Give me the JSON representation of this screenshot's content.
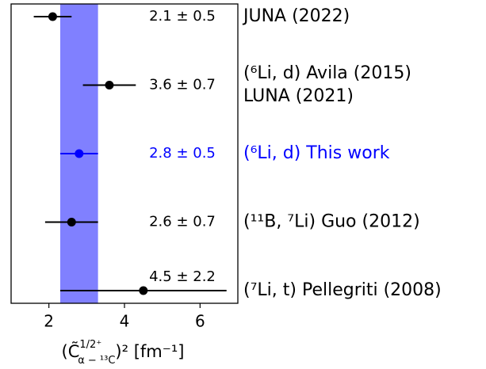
{
  "chart_data": {
    "type": "errorbar",
    "orientation": "horizontal",
    "categories": [
      [
        "JUNA (2022)"
      ],
      [
        "(⁶Li, d) Avila (2015)",
        "LUNA (2021)"
      ],
      [
        "(⁶Li, d) This work"
      ],
      [
        "(¹¹B, ⁷Li) Guo (2012)"
      ],
      [
        "(⁷Li, t) Pellegriti (2008)"
      ]
    ],
    "values": [
      2.1,
      3.6,
      2.8,
      2.6,
      4.5
    ],
    "errors": [
      0.5,
      0.7,
      0.5,
      0.7,
      2.2
    ],
    "value_labels": [
      "2.1 ± 0.5",
      "3.6 ± 0.7",
      "2.8 ± 0.5",
      "2.6 ± 0.7",
      "4.5 ± 2.2"
    ],
    "colors": [
      "#000000",
      "#000000",
      "#0000ff",
      "#000000",
      "#000000"
    ],
    "band": [
      2.3,
      3.3
    ],
    "band_color": "#8080ff",
    "x_label": {
      "open": "(C̃",
      "sup": "1/2⁺",
      "sub": "α − ¹³C",
      "close": ")² [fm⁻¹]"
    },
    "xlim": [
      1,
      7
    ],
    "xticks": [
      2,
      4,
      6
    ]
  }
}
